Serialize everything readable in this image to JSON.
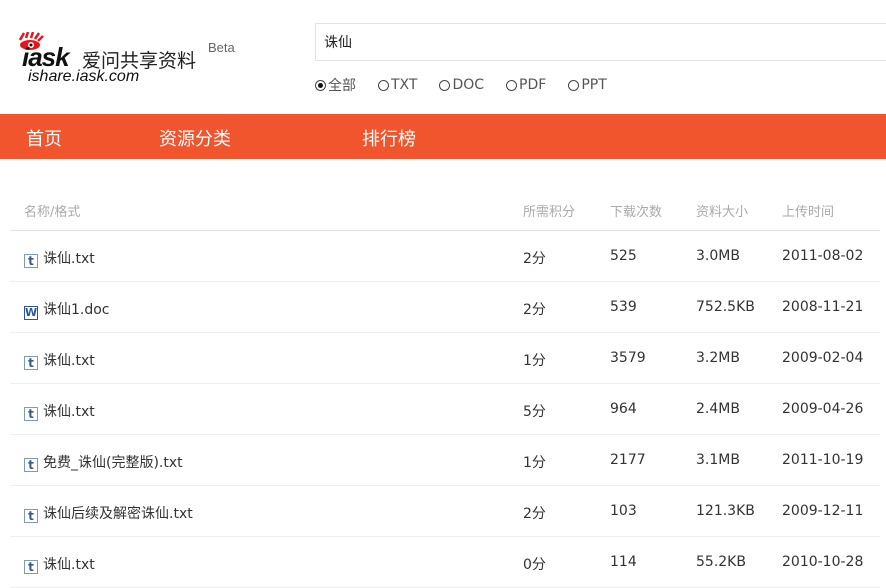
{
  "logo": {
    "brand": "iask",
    "name_cn": "爱问共享资料",
    "url": "ishare.iask.com",
    "beta": "Beta"
  },
  "search": {
    "value": "诛仙"
  },
  "filters": [
    {
      "label": "全部",
      "selected": true
    },
    {
      "label": "TXT",
      "selected": false
    },
    {
      "label": "DOC",
      "selected": false
    },
    {
      "label": "PDF",
      "selected": false
    },
    {
      "label": "PPT",
      "selected": false
    }
  ],
  "nav": {
    "items": [
      "首页",
      "资源分类",
      "排行榜"
    ],
    "color": "#f0552e"
  },
  "table": {
    "headers": [
      "名称/格式",
      "所需积分",
      "下载次数",
      "资料大小",
      "上传时间"
    ],
    "rows": [
      {
        "type": "txt",
        "icon": "t",
        "name": "诛仙.txt",
        "points": "2分",
        "downloads": "525",
        "size": "3.0MB",
        "date": "2011-08-02"
      },
      {
        "type": "doc",
        "icon": "W",
        "name": "诛仙1.doc",
        "points": "2分",
        "downloads": "539",
        "size": "752.5KB",
        "date": "2008-11-21"
      },
      {
        "type": "txt",
        "icon": "t",
        "name": "诛仙.txt",
        "points": "1分",
        "downloads": "3579",
        "size": "3.2MB",
        "date": "2009-02-04"
      },
      {
        "type": "txt",
        "icon": "t",
        "name": "诛仙.txt",
        "points": "5分",
        "downloads": "964",
        "size": "2.4MB",
        "date": "2009-04-26"
      },
      {
        "type": "txt",
        "icon": "t",
        "name": "免费_诛仙(完整版).txt",
        "points": "1分",
        "downloads": "2177",
        "size": "3.1MB",
        "date": "2011-10-19"
      },
      {
        "type": "txt",
        "icon": "t",
        "name": "诛仙后续及解密诛仙.txt",
        "points": "2分",
        "downloads": "103",
        "size": "121.3KB",
        "date": "2009-12-11"
      },
      {
        "type": "txt",
        "icon": "t",
        "name": "诛仙.txt",
        "points": "0分",
        "downloads": "114",
        "size": "55.2KB",
        "date": "2010-10-28"
      }
    ]
  }
}
